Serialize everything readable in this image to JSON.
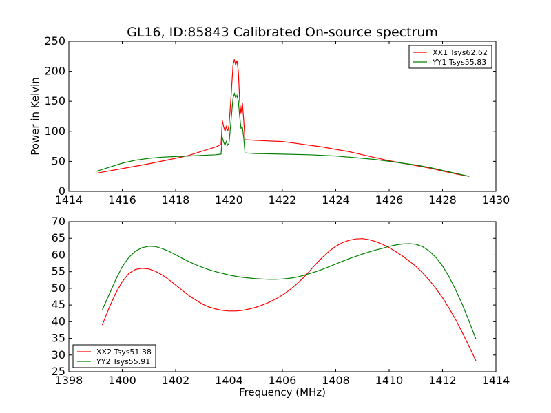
{
  "title": "GL16, ID:85843 Calibrated On-source spectrum",
  "chart_data": [
    {
      "type": "line",
      "title": "GL16, ID:85843 Calibrated On-source spectrum",
      "xlabel": "",
      "ylabel": "Power in Kelvin",
      "xlim": [
        1414,
        1430
      ],
      "ylim": [
        0,
        250
      ],
      "x_ticks": [
        "1414",
        "1416",
        "1418",
        "1420",
        "1422",
        "1424",
        "1426",
        "1428",
        "1430"
      ],
      "y_ticks": [
        "0",
        "50",
        "100",
        "150",
        "200",
        "250"
      ],
      "grid": false,
      "legend_position": "top-right",
      "series": [
        {
          "name": "XX1 Tsys62.62",
          "color": "#ff0000",
          "points": [
            [
              1415.0,
              30
            ],
            [
              1416.0,
              38
            ],
            [
              1417.0,
              46
            ],
            [
              1418.0,
              55
            ],
            [
              1418.5,
              60
            ],
            [
              1419.0,
              67
            ],
            [
              1419.5,
              74
            ],
            [
              1419.7,
              78
            ],
            [
              1419.75,
              118
            ],
            [
              1419.8,
              108
            ],
            [
              1419.85,
              100
            ],
            [
              1419.9,
              108
            ],
            [
              1419.95,
              100
            ],
            [
              1420.0,
              110
            ],
            [
              1420.08,
              160
            ],
            [
              1420.15,
              210
            ],
            [
              1420.2,
              220
            ],
            [
              1420.25,
              210
            ],
            [
              1420.3,
              218
            ],
            [
              1420.35,
              200
            ],
            [
              1420.4,
              150
            ],
            [
              1420.45,
              130
            ],
            [
              1420.5,
              148
            ],
            [
              1420.55,
              120
            ],
            [
              1420.6,
              86
            ],
            [
              1421.0,
              85
            ],
            [
              1421.5,
              84
            ],
            [
              1422.0,
              83
            ],
            [
              1422.5,
              80
            ],
            [
              1423.0,
              77
            ],
            [
              1423.5,
              74
            ],
            [
              1424.0,
              70
            ],
            [
              1424.5,
              66
            ],
            [
              1425.0,
              61
            ],
            [
              1425.5,
              56
            ],
            [
              1426.0,
              51
            ],
            [
              1426.5,
              47
            ],
            [
              1427.0,
              43
            ],
            [
              1427.5,
              39
            ],
            [
              1428.0,
              34
            ],
            [
              1428.5,
              29
            ],
            [
              1429.0,
              25
            ]
          ]
        },
        {
          "name": "YY1 Tsys55.83",
          "color": "#008000",
          "points": [
            [
              1415.0,
              33
            ],
            [
              1415.5,
              40
            ],
            [
              1416.0,
              47
            ],
            [
              1416.5,
              52
            ],
            [
              1417.0,
              55
            ],
            [
              1417.5,
              57
            ],
            [
              1418.0,
              58
            ],
            [
              1418.5,
              59
            ],
            [
              1419.0,
              60
            ],
            [
              1419.5,
              61
            ],
            [
              1419.7,
              62
            ],
            [
              1419.75,
              90
            ],
            [
              1419.8,
              82
            ],
            [
              1419.85,
              77
            ],
            [
              1419.9,
              83
            ],
            [
              1419.95,
              77
            ],
            [
              1420.0,
              80
            ],
            [
              1420.08,
              120
            ],
            [
              1420.15,
              155
            ],
            [
              1420.2,
              163
            ],
            [
              1420.25,
              156
            ],
            [
              1420.3,
              160
            ],
            [
              1420.35,
              150
            ],
            [
              1420.4,
              125
            ],
            [
              1420.45,
              105
            ],
            [
              1420.5,
              107
            ],
            [
              1420.55,
              90
            ],
            [
              1420.6,
              64
            ],
            [
              1421.0,
              63
            ],
            [
              1422.0,
              62
            ],
            [
              1423.0,
              61
            ],
            [
              1424.0,
              59
            ],
            [
              1424.5,
              57
            ],
            [
              1425.0,
              55
            ],
            [
              1425.5,
              53
            ],
            [
              1426.0,
              50
            ],
            [
              1426.5,
              47
            ],
            [
              1427.0,
              44
            ],
            [
              1427.5,
              40
            ],
            [
              1428.0,
              35
            ],
            [
              1428.5,
              30
            ],
            [
              1429.0,
              25
            ]
          ]
        }
      ]
    },
    {
      "type": "line",
      "title": "",
      "xlabel": "Frequency (MHz)",
      "ylabel": "",
      "xlim": [
        1398,
        1414
      ],
      "ylim": [
        25,
        70
      ],
      "x_ticks": [
        "1398",
        "1400",
        "1402",
        "1404",
        "1406",
        "1408",
        "1410",
        "1412",
        "1414"
      ],
      "y_ticks": [
        "25",
        "30",
        "35",
        "40",
        "45",
        "50",
        "55",
        "60",
        "65",
        "70"
      ],
      "grid": false,
      "legend_position": "bottom-left",
      "series": [
        {
          "name": "XX2 Tsys51.38",
          "color": "#ff0000",
          "points": [
            [
              1399.25,
              39
            ],
            [
              1399.5,
              44
            ],
            [
              1399.75,
              48.5
            ],
            [
              1400.0,
              52
            ],
            [
              1400.25,
              54.5
            ],
            [
              1400.5,
              55.7
            ],
            [
              1400.75,
              56
            ],
            [
              1401.0,
              55.8
            ],
            [
              1401.25,
              55.1
            ],
            [
              1401.5,
              54
            ],
            [
              1401.75,
              52.6
            ],
            [
              1402.0,
              51
            ],
            [
              1402.25,
              49.4
            ],
            [
              1402.5,
              47.8
            ],
            [
              1402.75,
              46.5
            ],
            [
              1403.0,
              45.3
            ],
            [
              1403.25,
              44.4
            ],
            [
              1403.5,
              43.8
            ],
            [
              1403.75,
              43.4
            ],
            [
              1404.0,
              43.2
            ],
            [
              1404.25,
              43.2
            ],
            [
              1404.5,
              43.4
            ],
            [
              1404.75,
              43.8
            ],
            [
              1405.0,
              44.3
            ],
            [
              1405.25,
              45
            ],
            [
              1405.5,
              45.8
            ],
            [
              1405.75,
              46.8
            ],
            [
              1406.0,
              48
            ],
            [
              1406.25,
              49.4
            ],
            [
              1406.5,
              51
            ],
            [
              1406.75,
              52.9
            ],
            [
              1407.0,
              55
            ],
            [
              1407.25,
              57.2
            ],
            [
              1407.5,
              59.3
            ],
            [
              1407.75,
              61.1
            ],
            [
              1408.0,
              62.6
            ],
            [
              1408.25,
              63.7
            ],
            [
              1408.5,
              64.4
            ],
            [
              1408.75,
              64.8
            ],
            [
              1409.0,
              64.9
            ],
            [
              1409.25,
              64.6
            ],
            [
              1409.5,
              64
            ],
            [
              1409.75,
              63.2
            ],
            [
              1410.0,
              62.2
            ],
            [
              1410.25,
              61
            ],
            [
              1410.5,
              59.7
            ],
            [
              1410.75,
              58.2
            ],
            [
              1411.0,
              56.6
            ],
            [
              1411.25,
              54.7
            ],
            [
              1411.5,
              52.5
            ],
            [
              1411.75,
              50
            ],
            [
              1412.0,
              47.2
            ],
            [
              1412.25,
              44
            ],
            [
              1412.5,
              40.5
            ],
            [
              1412.75,
              36.6
            ],
            [
              1413.0,
              32.5
            ],
            [
              1413.25,
              28.3
            ]
          ]
        },
        {
          "name": "YY2 Tsys55.91",
          "color": "#008000",
          "points": [
            [
              1399.25,
              43.5
            ],
            [
              1399.5,
              48
            ],
            [
              1399.75,
              52.5
            ],
            [
              1400.0,
              56.5
            ],
            [
              1400.25,
              59.3
            ],
            [
              1400.5,
              61.2
            ],
            [
              1400.75,
              62.2
            ],
            [
              1401.0,
              62.6
            ],
            [
              1401.25,
              62.5
            ],
            [
              1401.5,
              61.9
            ],
            [
              1401.75,
              61.1
            ],
            [
              1402.0,
              60.1
            ],
            [
              1402.25,
              59
            ],
            [
              1402.5,
              58
            ],
            [
              1402.75,
              57.1
            ],
            [
              1403.0,
              56.3
            ],
            [
              1403.25,
              55.6
            ],
            [
              1403.5,
              55
            ],
            [
              1403.75,
              54.5
            ],
            [
              1404.0,
              54
            ],
            [
              1404.25,
              53.6
            ],
            [
              1404.5,
              53.3
            ],
            [
              1404.75,
              53.1
            ],
            [
              1405.0,
              52.9
            ],
            [
              1405.25,
              52.8
            ],
            [
              1405.5,
              52.7
            ],
            [
              1405.75,
              52.7
            ],
            [
              1406.0,
              52.8
            ],
            [
              1406.25,
              53
            ],
            [
              1406.5,
              53.3
            ],
            [
              1406.75,
              53.8
            ],
            [
              1407.0,
              54.4
            ],
            [
              1407.25,
              55
            ],
            [
              1407.5,
              55.7
            ],
            [
              1407.75,
              56.5
            ],
            [
              1408.0,
              57.3
            ],
            [
              1408.25,
              58.1
            ],
            [
              1408.5,
              58.9
            ],
            [
              1408.75,
              59.6
            ],
            [
              1409.0,
              60.3
            ],
            [
              1409.25,
              60.9
            ],
            [
              1409.5,
              61.5
            ],
            [
              1409.75,
              62
            ],
            [
              1410.0,
              62.6
            ],
            [
              1410.25,
              63
            ],
            [
              1410.5,
              63.3
            ],
            [
              1410.75,
              63.4
            ],
            [
              1411.0,
              63.2
            ],
            [
              1411.25,
              62.5
            ],
            [
              1411.5,
              61.2
            ],
            [
              1411.75,
              59.3
            ],
            [
              1412.0,
              56.7
            ],
            [
              1412.25,
              53.4
            ],
            [
              1412.5,
              49.4
            ],
            [
              1412.75,
              45
            ],
            [
              1413.0,
              40
            ],
            [
              1413.25,
              34.8
            ]
          ]
        }
      ]
    }
  ]
}
